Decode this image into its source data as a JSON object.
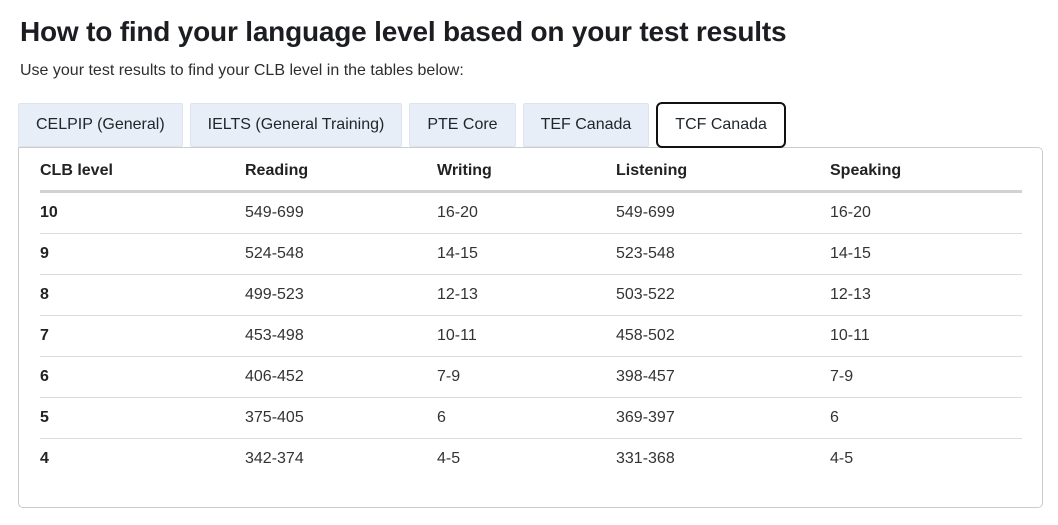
{
  "page": {
    "title": "How to find your language level based on your test results",
    "subtitle": "Use your test results to find your CLB level in the tables below:"
  },
  "tabs": [
    {
      "label": "CELPIP (General)",
      "active": false
    },
    {
      "label": "IELTS (General Training)",
      "active": false
    },
    {
      "label": "PTE Core",
      "active": false
    },
    {
      "label": "TEF Canada",
      "active": false
    },
    {
      "label": "TCF Canada",
      "active": true
    }
  ],
  "table": {
    "columns": [
      "CLB level",
      "Reading",
      "Writing",
      "Listening",
      "Speaking"
    ],
    "rows": [
      [
        "10",
        "549-699",
        "16-20",
        "549-699",
        "16-20"
      ],
      [
        "9",
        "524-548",
        "14-15",
        "523-548",
        "14-15"
      ],
      [
        "8",
        "499-523",
        "12-13",
        "503-522",
        "12-13"
      ],
      [
        "7",
        "453-498",
        "10-11",
        "458-502",
        "10-11"
      ],
      [
        "6",
        "406-452",
        "7-9",
        "398-457",
        "7-9"
      ],
      [
        "5",
        "375-405",
        "6",
        "369-397",
        "6"
      ],
      [
        "4",
        "342-374",
        "4-5",
        "331-368",
        "4-5"
      ]
    ]
  },
  "colors": {
    "heading_text": "#1b1d20",
    "body_text": "#333333",
    "tab_background": "#e8eef7",
    "tab_border": "#dde4ee",
    "active_tab_border": "#111111",
    "active_tab_background": "#ffffff",
    "panel_border": "#cccccc",
    "header_rule": "#d2d2d2",
    "row_rule": "#dcdcdc"
  }
}
